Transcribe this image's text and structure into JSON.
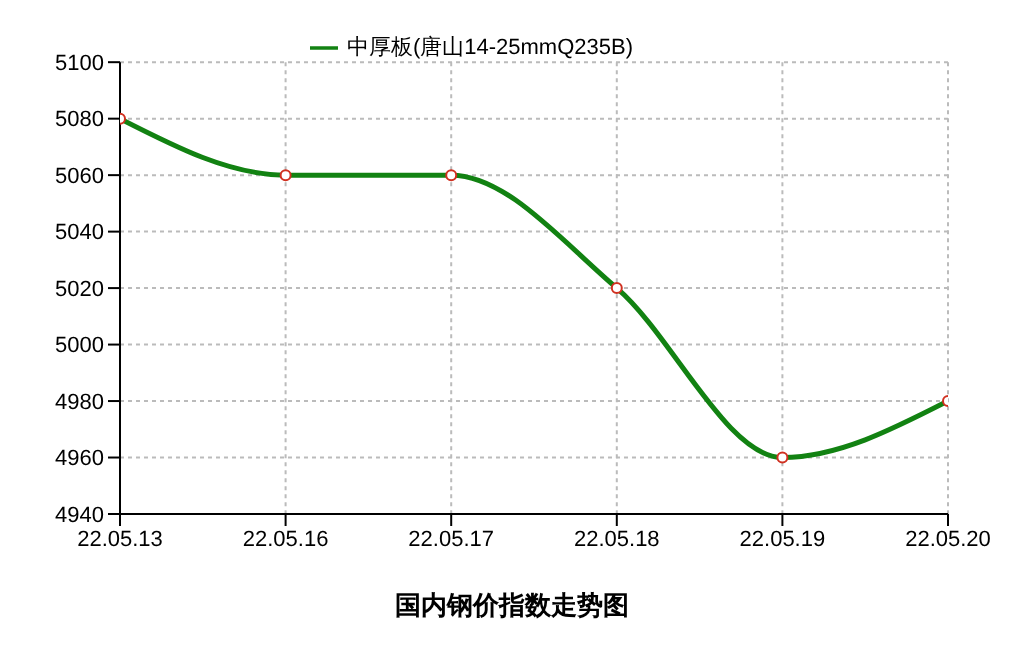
{
  "chart_data": {
    "type": "line",
    "title": "国内钢价指数走势图",
    "categories": [
      "22.05.13",
      "22.05.16",
      "22.05.17",
      "22.05.18",
      "22.05.19",
      "22.05.20"
    ],
    "series": [
      {
        "name": "中厚板(唐山14-25mmQ235B)",
        "color": "#128212",
        "values": [
          5080,
          5060,
          5060,
          5020,
          4960,
          4980
        ]
      }
    ],
    "ylim": [
      4940,
      5100
    ],
    "yticks": [
      4940,
      4960,
      4980,
      5000,
      5020,
      5040,
      5060,
      5080,
      5100
    ],
    "grid": true,
    "legend": "top",
    "marker": "circle",
    "line_style": "solid"
  }
}
